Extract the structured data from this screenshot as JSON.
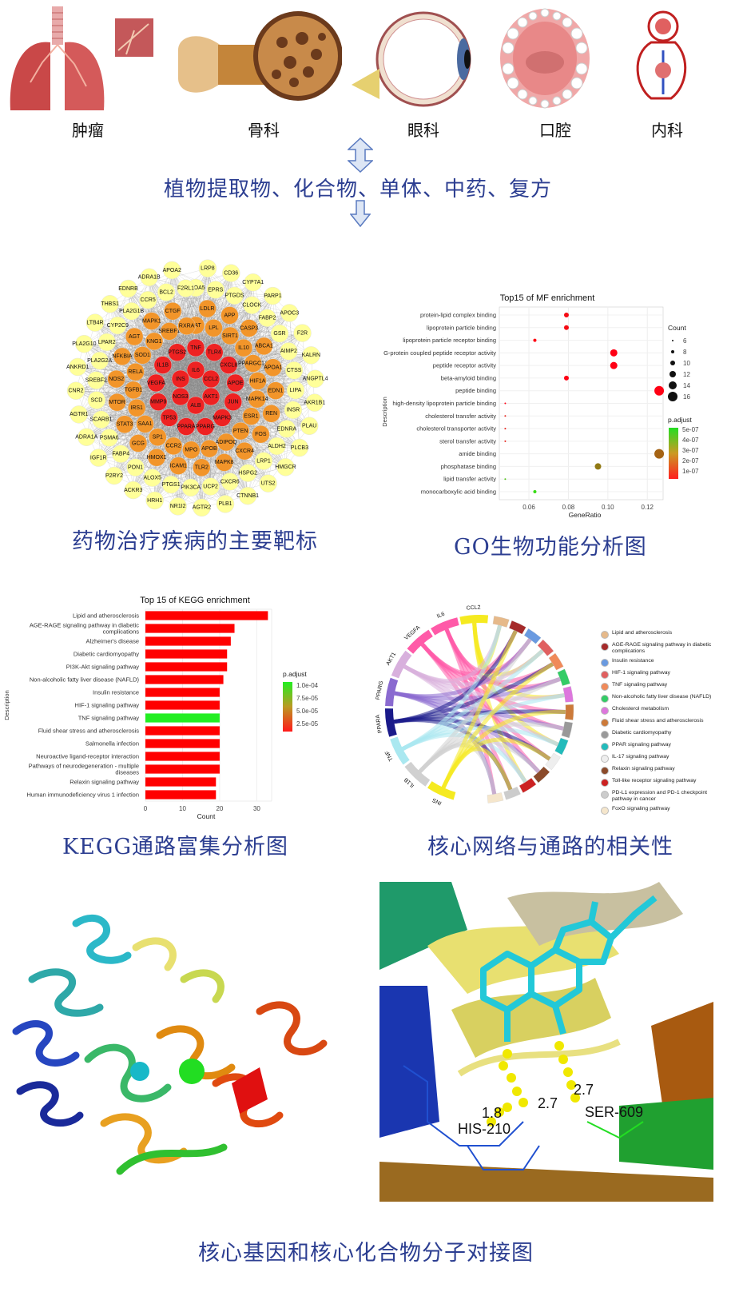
{
  "organs": [
    {
      "label": "肿瘤",
      "icon": "lung-icon"
    },
    {
      "label": "骨科",
      "icon": "bone-icon"
    },
    {
      "label": "眼科",
      "icon": "eye-icon"
    },
    {
      "label": "口腔",
      "icon": "mouth-icon"
    },
    {
      "label": "内科",
      "icon": "heart-circulation-icon"
    }
  ],
  "compounds_caption": "植物提取物、化合物、单体、中药、复方",
  "network": {
    "caption": "药物治疗疾病的主要靶标",
    "inner": [
      "IL6",
      "CCL2",
      "AKT1",
      "ALB",
      "NOS3",
      "INS",
      "TNF",
      "TLR4",
      "CXCL8",
      "APOE",
      "JUN",
      "MAPK3",
      "PPARG",
      "PPARA",
      "TP53",
      "MMP9",
      "VEGFA",
      "IL1B",
      "PTGS2"
    ],
    "middle": [
      "CAT",
      "LDLR",
      "LPL",
      "APP",
      "SIRT1",
      "CASP3",
      "IL10",
      "ABCA1",
      "PPARGC1A",
      "APOA1",
      "HIF1A",
      "EDN1",
      "MAPK14",
      "REN",
      "ESR1",
      "FOS",
      "PTEN",
      "CXCR4",
      "ADIPOQ",
      "MAPK8",
      "APOB",
      "TLR2",
      "MPO",
      "ICAM1",
      "CCR2",
      "HMOX1",
      "SP1",
      "GCG",
      "SAA1",
      "STAT3",
      "IRS1",
      "MTOR",
      "TGFB1",
      "NOS2",
      "RELA",
      "NFKBIA",
      "SOD1",
      "AGT",
      "KNG1",
      "MAPK1",
      "SREBF1",
      "CTGF",
      "RXRA"
    ],
    "outer": [
      "APOA5",
      "LRP8",
      "EPRS",
      "CD36",
      "PTGDS",
      "CYP7A1",
      "CLOCK",
      "PARP1",
      "FABP2",
      "APOC3",
      "GSR",
      "F2R",
      "AIMP2",
      "KALRN",
      "CTSS",
      "ANGPTL4",
      "LIPA",
      "AKR1B1",
      "INSR",
      "PLAU",
      "EDNRA",
      "PLCB3",
      "ALDH2",
      "HMGCR",
      "LRP1",
      "UTS2",
      "HSPG2",
      "CTNNB1",
      "CXCR6",
      "PLB1",
      "UCP2",
      "AGTR2",
      "PIK3CA",
      "NR1I2",
      "PTGS1",
      "HRH1",
      "ALOX5",
      "ACKR3",
      "PON1",
      "P2RY2",
      "FABP4",
      "IGF1R",
      "PSMA6",
      "ADRA1A",
      "SCARB1",
      "AGTR1",
      "SCD",
      "CNR2",
      "SREBF2",
      "ANKRD1",
      "PLA2G2A",
      "PLA2G10",
      "LPAR2",
      "LTB4R",
      "CYP2C9",
      "THBS1",
      "PLA2G1B",
      "EDNRB",
      "CCR5",
      "ADRA1B",
      "BCL2",
      "APOA2",
      "F2RL1"
    ]
  },
  "go": {
    "caption": "GO生物功能分析图",
    "title": "Top15 of MF enrichment",
    "ylabel": "Description",
    "xlabel": "GeneRatio",
    "count_legend_title": "Count",
    "count_legend": [
      "6",
      "8",
      "10",
      "12",
      "14",
      "16"
    ],
    "padj_legend_title": "p.adjust",
    "padj_legend": [
      "5e-07",
      "4e-07",
      "3e-07",
      "2e-07",
      "1e-07"
    ],
    "xticks": [
      "0.06",
      "0.08",
      "0.10",
      "0.12"
    ]
  },
  "kegg": {
    "caption": "KEGG通路富集分析图",
    "title": "Top 15 of KEGG enrichment",
    "ylabel": "Description",
    "xlabel": "Count",
    "legend_title": "p.adjust",
    "legend": [
      "1.0e-04",
      "7.5e-05",
      "5.0e-05",
      "2.5e-05"
    ],
    "xticks": [
      "0",
      "10",
      "20",
      "30"
    ]
  },
  "chord": {
    "caption": "核心网络与通路的相关性",
    "genes": [
      "CCL2",
      "IL6",
      "VEGFA",
      "AKT1",
      "PPARG",
      "PPARA",
      "TNF",
      "IL1B",
      "INS"
    ],
    "legend": [
      {
        "label": "Lipid and atherosclerosis",
        "color": "#e6b98a"
      },
      {
        "label": "AGE-RAGE signaling pathway in diabetic complications",
        "color": "#a52a2a"
      },
      {
        "label": "Insulin resistance",
        "color": "#6a9ae0"
      },
      {
        "label": "HIF-1 signaling pathway",
        "color": "#e06060"
      },
      {
        "label": "TNF signaling pathway",
        "color": "#f08a5a"
      },
      {
        "label": "Non-alcoholic fatty liver disease (NAFLD)",
        "color": "#33cc66"
      },
      {
        "label": "Cholesterol metabolism",
        "color": "#dd77dd"
      },
      {
        "label": "Fluid shear stress and atherosclerosis",
        "color": "#cc7a3a"
      },
      {
        "label": "Diabetic cardiomyopathy",
        "color": "#999999"
      },
      {
        "label": "PPAR signaling pathway",
        "color": "#22bbbb"
      },
      {
        "label": "IL-17 signaling pathway",
        "color": "#eeeeee"
      },
      {
        "label": "Relaxin signaling pathway",
        "color": "#8b4a2a"
      },
      {
        "label": "Toll-like receptor signaling pathway",
        "color": "#cc2222"
      },
      {
        "label": "PD-L1 expression and PD-1 checkpoint pathway in cancer",
        "color": "#cccccc"
      },
      {
        "label": "FoxO signaling pathway",
        "color": "#f5e6cc"
      }
    ]
  },
  "docking": {
    "caption": "核心基因和核心化合物分子对接图",
    "distances": [
      "1.8",
      "2.7",
      "2.7"
    ],
    "residues": [
      "HIS-210",
      "SER-609"
    ]
  },
  "chart_data": [
    {
      "type": "scatter",
      "title": "Top15 of MF enrichment",
      "xlabel": "GeneRatio",
      "ylabel": "Description",
      "xlim": [
        0.045,
        0.128
      ],
      "categories": [
        "protein-lipid complex binding",
        "lipoprotein particle binding",
        "lipoprotein particle receptor binding",
        "G-protein coupled peptide receptor activity",
        "peptide receptor activity",
        "beta-amyloid binding",
        "peptide binding",
        "high-density lipoprotein particle binding",
        "cholesterol transfer activity",
        "cholesterol transporter activity",
        "sterol transfer activity",
        "amide binding",
        "phosphatase binding",
        "lipid transfer activity",
        "monocarboxylic acid binding"
      ],
      "x": [
        0.079,
        0.079,
        0.063,
        0.103,
        0.103,
        0.079,
        0.126,
        0.048,
        0.048,
        0.048,
        0.048,
        0.126,
        0.095,
        0.048,
        0.063
      ],
      "count": [
        10,
        10,
        8,
        13,
        13,
        10,
        16,
        6,
        6,
        6,
        6,
        16,
        12,
        6,
        8
      ],
      "p_adjust": [
        1.2e-07,
        1.2e-07,
        1e-07,
        1e-07,
        1e-07,
        1e-07,
        1e-07,
        1e-07,
        1.5e-07,
        1.5e-07,
        1.5e-07,
        2.8e-07,
        3.2e-07,
        4.5e-07,
        5e-07
      ]
    },
    {
      "type": "bar",
      "title": "Top 15 of KEGG enrichment",
      "xlabel": "Count",
      "ylabel": "Description",
      "xlim": [
        0,
        34
      ],
      "categories": [
        "Lipid and atherosclerosis",
        "AGE-RAGE signaling pathway in diabetic complications",
        "Alzheimer's disease",
        "Diabetic cardiomyopathy",
        "PI3K-Akt signaling pathway",
        "Non-alcoholic fatty liver disease (NAFLD)",
        "Insulin resistance",
        "HIF-1 signaling pathway",
        "TNF signaling pathway",
        "Fluid shear stress and atherosclerosis",
        "Salmonella infection",
        "Neuroactive ligand-receptor interaction",
        "Pathways of neurodegeneration - multiple diseases",
        "Relaxin signaling pathway",
        "Human immunodeficiency virus 1 infection"
      ],
      "values": [
        33,
        24,
        23,
        22,
        22,
        21,
        20,
        20,
        20,
        20,
        20,
        20,
        20,
        19,
        19
      ],
      "colors": [
        "#ff0000",
        "#ff0000",
        "#ff0000",
        "#ff0000",
        "#ff0000",
        "#ff0000",
        "#ff0000",
        "#ff0000",
        "#22ee22",
        "#ff0000",
        "#ff0000",
        "#ff0000",
        "#ff0000",
        "#ff0000",
        "#ff0000"
      ]
    }
  ]
}
